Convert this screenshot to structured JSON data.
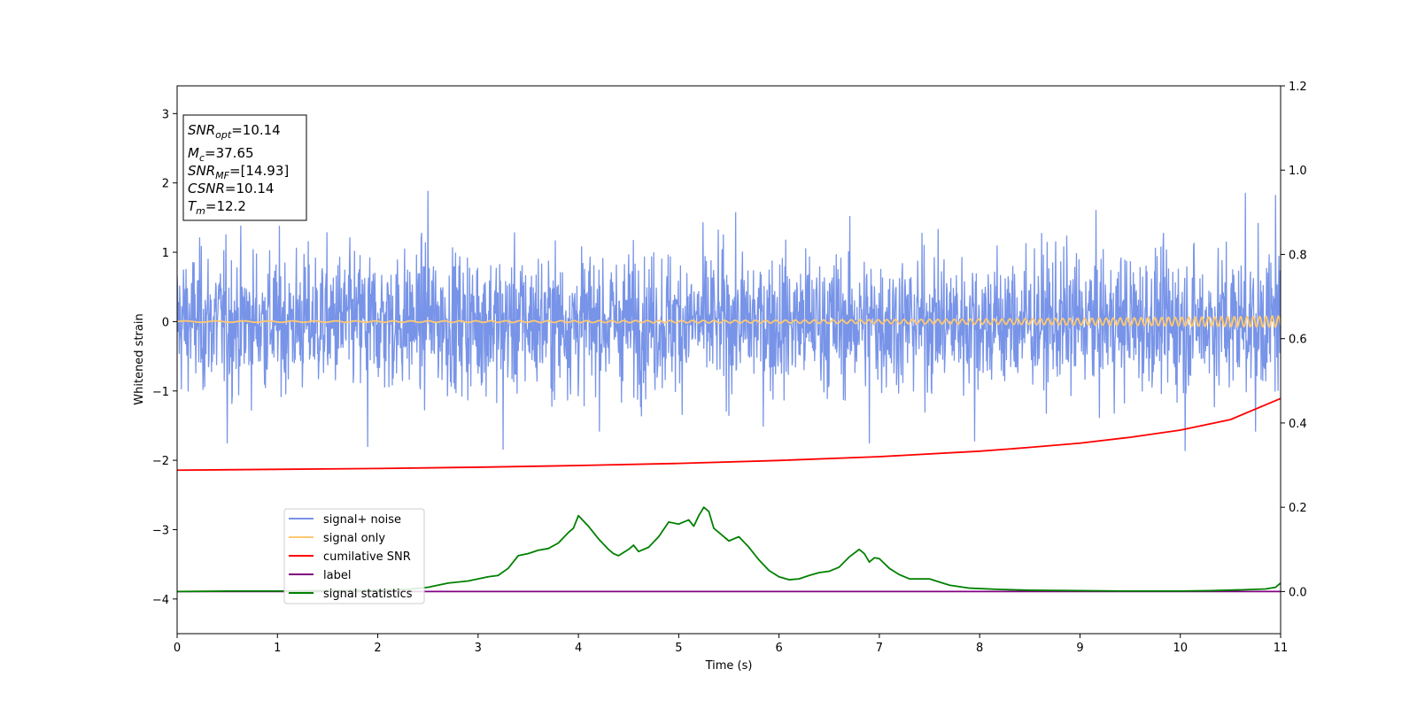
{
  "chart_data": {
    "type": "line",
    "xlabel": "Time (s)",
    "ylabel": "Whitened strain",
    "ylabel_right": "",
    "xlim": [
      0,
      11
    ],
    "ylim": [
      -4.5,
      3.4
    ],
    "ylim_right": [
      -0.1,
      1.2
    ],
    "x_ticks": [
      0,
      1,
      2,
      3,
      4,
      5,
      6,
      7,
      8,
      9,
      10,
      11
    ],
    "x_tick_labels": [
      "0",
      "1",
      "2",
      "3",
      "4",
      "5",
      "6",
      "7",
      "8",
      "9",
      "10",
      "11"
    ],
    "y_ticks": [
      -4,
      -3,
      -2,
      -1,
      0,
      1,
      2,
      3
    ],
    "y_tick_labels": [
      "−4",
      "−3",
      "−2",
      "−1",
      "0",
      "1",
      "2",
      "3"
    ],
    "y_ticks_right": [
      0.0,
      0.2,
      0.4,
      0.6,
      0.8,
      1.0,
      1.2
    ],
    "y_tick_labels_right": [
      "0.0",
      "0.2",
      "0.4",
      "0.6",
      "0.8",
      "1.0",
      "1.2"
    ],
    "grid": false,
    "legend_position": "lower-left",
    "annotation": {
      "lines": [
        {
          "base": "SNR",
          "sub": "opt",
          "value": "=10.14"
        },
        {
          "base": "M",
          "sub": "c",
          "value": "=37.65"
        },
        {
          "base": "SNR",
          "sub": "MF",
          "value": "=[14.93]"
        },
        {
          "base": "CSNR",
          "sub": "",
          "value": "=10.14"
        },
        {
          "base": "T",
          "sub": "m",
          "value": "=12.2"
        }
      ]
    },
    "series": [
      {
        "name": "signal+ noise",
        "axis": "left",
        "color": "#7894e8",
        "kind": "noise",
        "noise_sigma": 0.5,
        "noise_extremes": [
          {
            "x": 0.5,
            "y": -1.75
          },
          {
            "x": 2.5,
            "y": 1.88
          },
          {
            "x": 3.25,
            "y": -1.84
          },
          {
            "x": 1.9,
            "y": -1.8
          },
          {
            "x": 6.9,
            "y": -1.75
          },
          {
            "x": 7.95,
            "y": -1.72
          },
          {
            "x": 10.05,
            "y": -1.86
          },
          {
            "x": 10.65,
            "y": 1.85
          },
          {
            "x": 10.95,
            "y": 1.82
          },
          {
            "x": 10.75,
            "y": -1.58
          }
        ]
      },
      {
        "name": "signal only",
        "axis": "left",
        "color": "#ffc870",
        "kind": "chirp",
        "amplitude_start": 0.01,
        "amplitude_end": 0.08
      },
      {
        "name": "cumilative SNR",
        "axis": "right",
        "color": "#ff0000",
        "x": [
          0,
          1,
          2,
          3,
          4,
          5,
          6,
          7,
          8,
          8.5,
          9,
          9.5,
          10,
          10.5,
          11
        ],
        "y": [
          0.288,
          0.29,
          0.292,
          0.295,
          0.299,
          0.304,
          0.311,
          0.32,
          0.333,
          0.342,
          0.352,
          0.366,
          0.383,
          0.408,
          0.458
        ]
      },
      {
        "name": "label",
        "axis": "right",
        "color": "#800080",
        "x": [
          0,
          11
        ],
        "y": [
          0.0,
          0.0
        ]
      },
      {
        "name": "signal statistics",
        "axis": "right",
        "color": "#008000",
        "x": [
          0,
          0.5,
          1,
          1.5,
          2,
          2.3,
          2.5,
          2.7,
          2.9,
          3.0,
          3.1,
          3.2,
          3.3,
          3.4,
          3.5,
          3.6,
          3.7,
          3.8,
          3.9,
          3.95,
          4.0,
          4.1,
          4.2,
          4.3,
          4.35,
          4.4,
          4.5,
          4.55,
          4.6,
          4.7,
          4.8,
          4.9,
          5.0,
          5.1,
          5.15,
          5.2,
          5.25,
          5.3,
          5.35,
          5.45,
          5.5,
          5.6,
          5.7,
          5.8,
          5.9,
          6.0,
          6.1,
          6.2,
          6.3,
          6.4,
          6.5,
          6.6,
          6.7,
          6.8,
          6.85,
          6.9,
          6.95,
          7.0,
          7.1,
          7.2,
          7.3,
          7.5,
          7.7,
          7.9,
          8.2,
          8.5,
          9.0,
          9.5,
          10.0,
          10.3,
          10.6,
          10.85,
          10.95,
          11.0
        ],
        "y": [
          0.0,
          0.001,
          0.001,
          0.002,
          0.003,
          0.005,
          0.01,
          0.02,
          0.025,
          0.03,
          0.035,
          0.038,
          0.055,
          0.085,
          0.09,
          0.098,
          0.102,
          0.115,
          0.14,
          0.15,
          0.18,
          0.155,
          0.125,
          0.1,
          0.09,
          0.085,
          0.1,
          0.11,
          0.095,
          0.105,
          0.13,
          0.165,
          0.16,
          0.17,
          0.155,
          0.18,
          0.2,
          0.19,
          0.15,
          0.13,
          0.12,
          0.13,
          0.105,
          0.075,
          0.05,
          0.035,
          0.028,
          0.03,
          0.038,
          0.045,
          0.048,
          0.058,
          0.082,
          0.1,
          0.09,
          0.07,
          0.08,
          0.078,
          0.055,
          0.04,
          0.03,
          0.03,
          0.015,
          0.008,
          0.005,
          0.003,
          0.002,
          0.001,
          0.001,
          0.002,
          0.004,
          0.006,
          0.01,
          0.02
        ]
      }
    ]
  }
}
